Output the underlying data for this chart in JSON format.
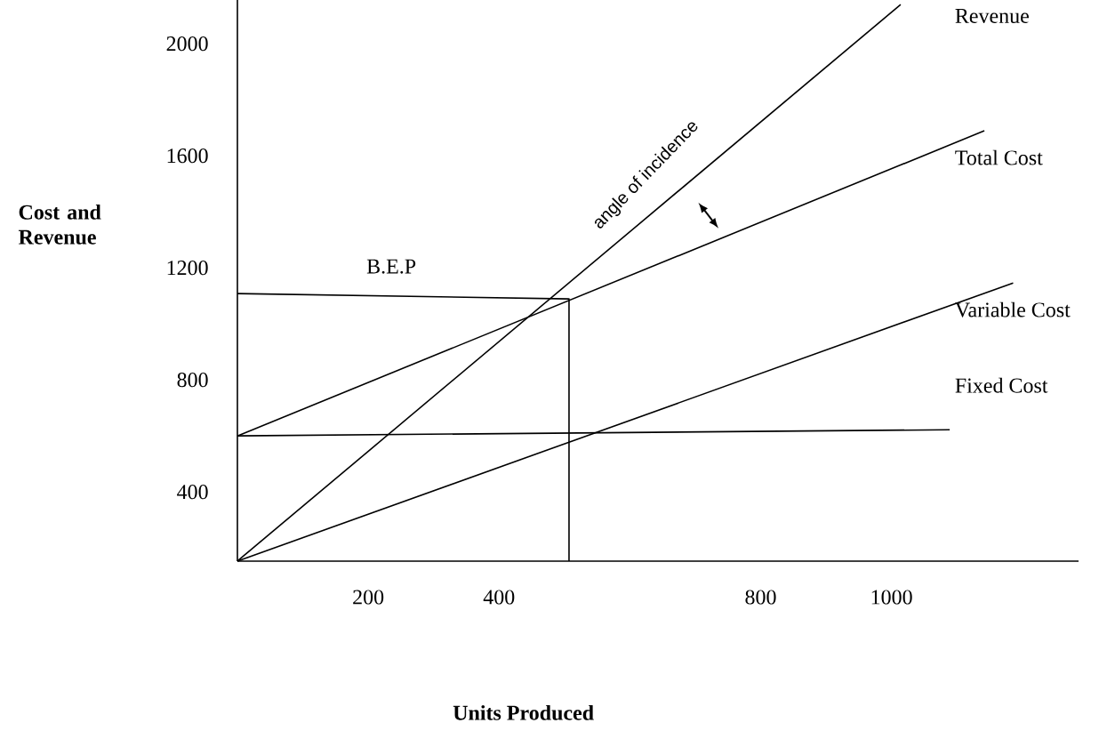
{
  "chart_data": {
    "type": "line",
    "xlabel": "Units Produced",
    "ylabel": "Cost and Revenue",
    "xlim": [
      0,
      1286
    ],
    "ylim": [
      153,
      2156
    ],
    "xticks": [
      200,
      400,
      800,
      1000
    ],
    "yticks": [
      400,
      800,
      1200,
      1600,
      2000
    ],
    "legend": false,
    "series": [
      {
        "name": "Revenue",
        "color": "#000000",
        "x": [
          0,
          1014
        ],
        "values": [
          153,
          2140
        ]
      },
      {
        "name": "Total Cost",
        "color": "#000000",
        "x": [
          0,
          1142
        ],
        "values": [
          600,
          1689
        ]
      },
      {
        "name": "Variable Cost",
        "color": "#000000",
        "x": [
          0,
          1186
        ],
        "values": [
          153,
          1146
        ]
      },
      {
        "name": "Fixed Cost",
        "color": "#000000",
        "x": [
          0,
          1089
        ],
        "values": [
          600,
          622
        ]
      },
      {
        "color": "#000000",
        "x": [
          0,
          507,
          507
        ],
        "values": [
          1108,
          1089,
          153
        ]
      }
    ],
    "annotations": [
      "B.E.P",
      "angle of incidence"
    ]
  }
}
